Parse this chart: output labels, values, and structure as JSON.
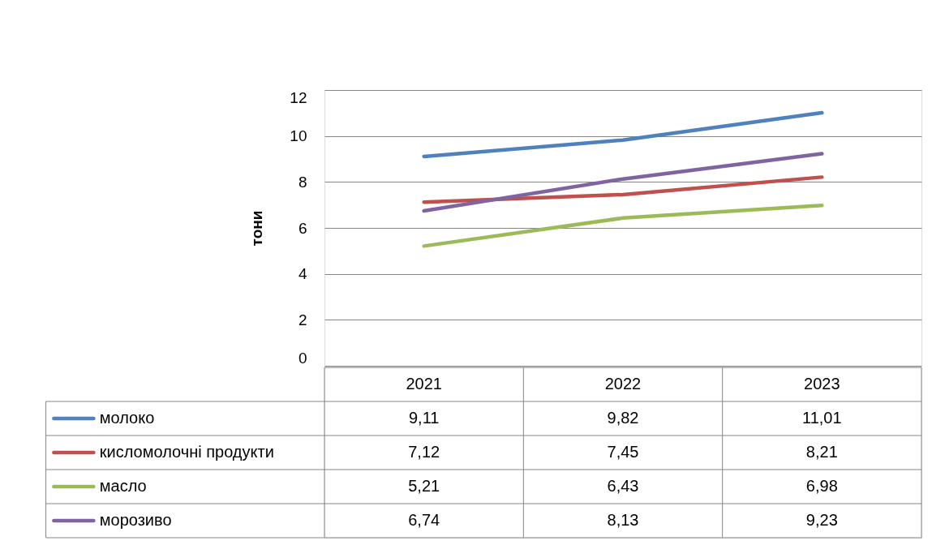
{
  "chart_data": {
    "type": "line",
    "ylabel": "тони",
    "categories": [
      "2021",
      "2022",
      "2023"
    ],
    "series": [
      {
        "name": "молоко",
        "color": "#4f81bd",
        "values": [
          9.11,
          9.82,
          11.01
        ],
        "value_labels": [
          "9,11",
          "9,82",
          "11,01"
        ]
      },
      {
        "name": "кисломолочні продукти",
        "color": "#c0504d",
        "values": [
          7.12,
          7.45,
          8.21
        ],
        "value_labels": [
          "7,12",
          "7,45",
          "8,21"
        ]
      },
      {
        "name": "масло",
        "color": "#9bbb59",
        "values": [
          5.21,
          6.43,
          6.98
        ],
        "value_labels": [
          "5,21",
          "6,43",
          "6,98"
        ]
      },
      {
        "name": "морозиво",
        "color": "#8064a2",
        "values": [
          6.74,
          8.13,
          9.23
        ],
        "value_labels": [
          "6,74",
          "8,13",
          "9,23"
        ]
      }
    ],
    "ylim": [
      0,
      12
    ],
    "yticks": [
      0,
      2,
      4,
      6,
      8,
      10,
      12
    ],
    "grid": "y",
    "legend": "bottom"
  }
}
